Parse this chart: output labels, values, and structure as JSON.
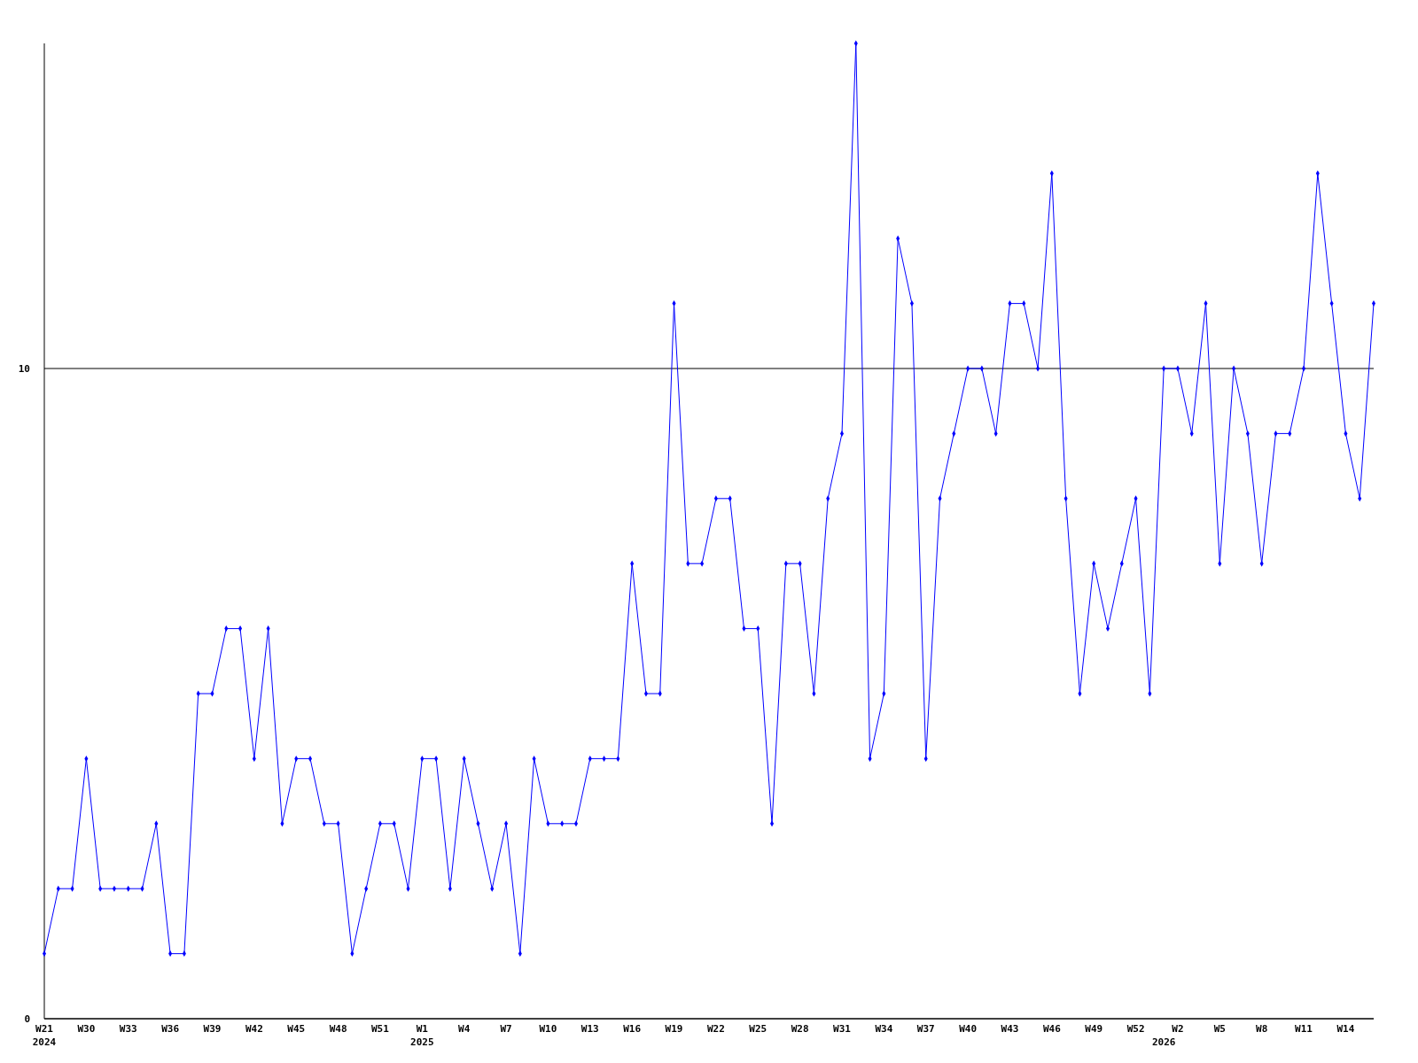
{
  "chart_data": {
    "type": "line",
    "categories": [
      "W21\n2024",
      null,
      null,
      "W30",
      null,
      null,
      "W33",
      null,
      null,
      "W36",
      null,
      null,
      "W39",
      null,
      null,
      "W42",
      null,
      null,
      "W45",
      null,
      null,
      "W48",
      null,
      null,
      "W51",
      null,
      null,
      "W1\n2025",
      null,
      null,
      "W4",
      null,
      null,
      "W7",
      null,
      null,
      "W10",
      null,
      null,
      "W13",
      null,
      null,
      "W16",
      null,
      null,
      "W19",
      null,
      null,
      "W22",
      null,
      null,
      "W25",
      null,
      null,
      "W28",
      null,
      null,
      "W31",
      null,
      null,
      "W34",
      null,
      null,
      "W37",
      null,
      null,
      "W40",
      null,
      null,
      "W43",
      null,
      null,
      "W46",
      null,
      null,
      "W49",
      null,
      null,
      "W52",
      null,
      "\n2026",
      "W2",
      null,
      null,
      "W5",
      null,
      null,
      "W8",
      null,
      null,
      "W11",
      null,
      null,
      "W14",
      null,
      null
    ],
    "series": [
      {
        "color": "#0000ff",
        "values": [
          1,
          2,
          2,
          4,
          2,
          2,
          2,
          2,
          3,
          1,
          1,
          5,
          5,
          6,
          6,
          4,
          6,
          3,
          4,
          4,
          3,
          3,
          1,
          2,
          3,
          3,
          2,
          4,
          4,
          2,
          4,
          3,
          2,
          3,
          1,
          4,
          3,
          3,
          3,
          4,
          4,
          4,
          7,
          5,
          5,
          11,
          7,
          7,
          8,
          8,
          6,
          6,
          3,
          7,
          7,
          5,
          8,
          9,
          15,
          4,
          5,
          12,
          11,
          4,
          8,
          9,
          10,
          10,
          9,
          11,
          11,
          10,
          13,
          8,
          5,
          7,
          6,
          7,
          8,
          5,
          10,
          10,
          9,
          11,
          7,
          10,
          9,
          7,
          9,
          9,
          10,
          13,
          11,
          9,
          8,
          11
        ]
      }
    ],
    "ylim": [
      0,
      15
    ],
    "yticks": [
      0,
      10
    ],
    "grid": "y",
    "marker": "diamond",
    "line_style": "solid"
  }
}
